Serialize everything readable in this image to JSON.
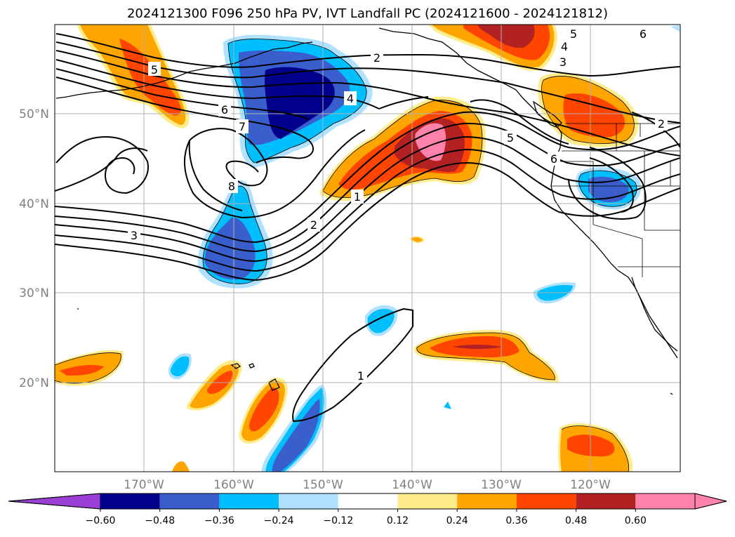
{
  "title": "2024121300 F096 250 hPa PV, IVT Landfall PC (2024121600 - 2024121812)",
  "map": {
    "lon_labels": [
      "170°W",
      "160°W",
      "150°W",
      "140°W",
      "130°W",
      "120°W"
    ],
    "lat_labels": [
      "50°N",
      "40°N",
      "30°N",
      "20°N"
    ],
    "contour_labels": [
      "5",
      "6",
      "7",
      "8",
      "3",
      "2",
      "4",
      "1",
      "2",
      "5",
      "6",
      "3",
      "5",
      "4",
      "6",
      "2",
      "1"
    ]
  },
  "colorbar": {
    "ticks": [
      "−0.60",
      "−0.48",
      "−0.36",
      "−0.24",
      "−0.12",
      "0.12",
      "0.24",
      "0.36",
      "0.48",
      "0.60"
    ],
    "colors": [
      "#9a3fd6",
      "#00008b",
      "#3a5fcd",
      "#00bfff",
      "#b0e2ff",
      "#ffffff",
      "#ffec8b",
      "#ffa500",
      "#ff4500",
      "#b22222",
      "#ff82ab",
      "#ff82ab"
    ]
  }
}
